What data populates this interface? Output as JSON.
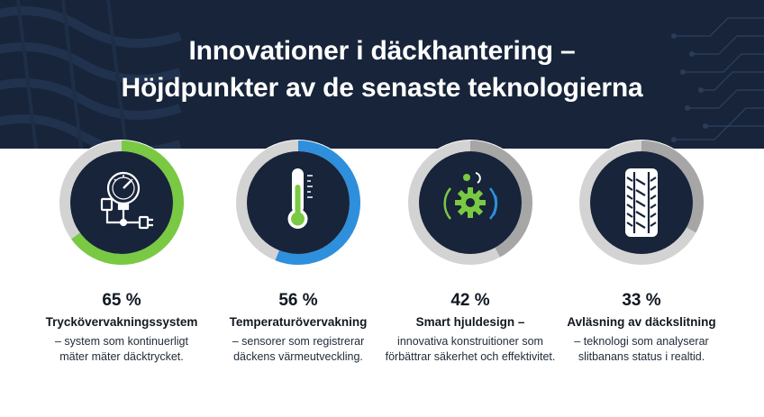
{
  "header": {
    "title_line1": "Innovationer i däckhantering –",
    "title_line2": "Höjdpunkter av de senaste teknologierna"
  },
  "colors": {
    "header_bg": "#17243a",
    "ring_green": "#7ac943",
    "ring_blue": "#2e8fdc",
    "ring_gray": "#a6a6a6",
    "track_gray": "#d3d3d3",
    "icon_dark": "#17243a"
  },
  "cards": [
    {
      "percent": 65,
      "percent_label": "65 %",
      "name": "Trycköverv­akningssystem",
      "desc_lines": [
        "– system som kontinuerligt",
        "mäter mäter däcktrycket."
      ],
      "icon": "pressure-gauge-icon",
      "ring_color": "#7ac943"
    },
    {
      "percent": 56,
      "percent_label": "56 %",
      "name": "Temperaturövervakning",
      "desc_lines": [
        "– sensorer som registrerar",
        "däckens värmeutveckling."
      ],
      "icon": "thermometer-icon",
      "ring_color": "#2e8fdc"
    },
    {
      "percent": 42,
      "percent_label": "42 %",
      "name": "Smart hjuldesign –",
      "desc_lines": [
        "innovativa konstruitioner som",
        "förbättrar säkerhet och effektivitet."
      ],
      "icon": "smart-gear-icon",
      "ring_color": "#a6a6a6"
    },
    {
      "percent": 33,
      "percent_label": "33 %",
      "name": "Avläsning av däckslitning",
      "desc_lines": [
        "– teknologi som analyserar",
        "slitbanans status i realtid."
      ],
      "icon": "tire-tread-icon",
      "ring_color": "#a6a6a6"
    }
  ]
}
